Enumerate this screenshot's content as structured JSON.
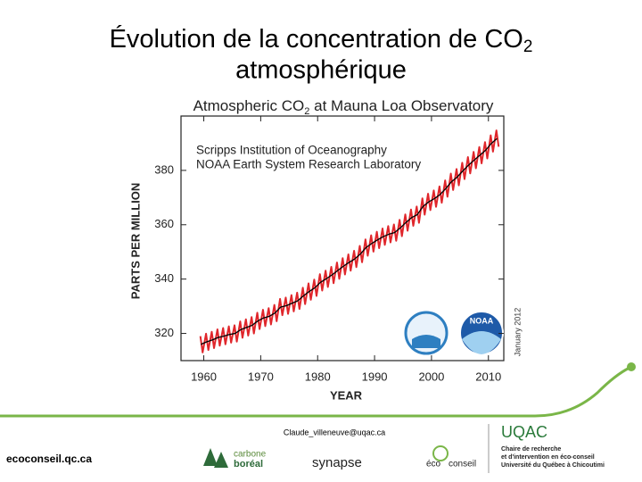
{
  "slide": {
    "title_main": "Évolution de la concentration de CO",
    "title_sub": "2",
    "title_line2": "atmosphérique"
  },
  "chart_data": {
    "type": "line",
    "title": "Atmospheric CO",
    "title_subscript": "2",
    "title_rest": "at Mauna Loa Observatory",
    "annotations": [
      "Scripps Institution of Oceanography",
      "NOAA Earth System Research Laboratory"
    ],
    "note": "January 2012",
    "logo_label": "NOAA",
    "xlabel": "YEAR",
    "ylabel": "PARTS PER MILLION",
    "xlim": [
      1956,
      2012.7
    ],
    "ylim": [
      310,
      400
    ],
    "xticks": [
      1960,
      1970,
      1980,
      1990,
      2000,
      2010
    ],
    "yticks": [
      320,
      340,
      360,
      380
    ],
    "series": [
      {
        "color": "#e0262b",
        "x": [
          1959.4,
          1959.8,
          1960.4,
          1960.8,
          1961.4,
          1961.8,
          1962.4,
          1962.8,
          1963.4,
          1963.8,
          1964.4,
          1964.8,
          1965.4,
          1965.8,
          1966.4,
          1966.8,
          1967.4,
          1967.8,
          1968.4,
          1968.8,
          1969.4,
          1969.8,
          1970.4,
          1970.8,
          1971.4,
          1971.8,
          1972.4,
          1972.8,
          1973.4,
          1973.8,
          1974.4,
          1974.8,
          1975.4,
          1975.8,
          1976.4,
          1976.8,
          1977.4,
          1977.8,
          1978.4,
          1978.8,
          1979.4,
          1979.8,
          1980.4,
          1980.8,
          1981.4,
          1981.8,
          1982.4,
          1982.8,
          1983.4,
          1983.8,
          1984.4,
          1984.8,
          1985.4,
          1985.8,
          1986.4,
          1986.8,
          1987.4,
          1987.8,
          1988.4,
          1988.8,
          1989.4,
          1989.8,
          1990.4,
          1990.8,
          1991.4,
          1991.8,
          1992.4,
          1992.8,
          1993.4,
          1993.8,
          1994.4,
          1994.8,
          1995.4,
          1995.8,
          1996.4,
          1996.8,
          1997.4,
          1997.8,
          1998.4,
          1998.8,
          1999.4,
          1999.8,
          2000.4,
          2000.8,
          2001.4,
          2001.8,
          2002.4,
          2002.8,
          2003.4,
          2003.8,
          2004.4,
          2004.8,
          2005.4,
          2005.8,
          2006.4,
          2006.8,
          2007.4,
          2007.8,
          2008.4,
          2008.8,
          2009.4,
          2009.8,
          2010.4,
          2010.8,
          2011.4,
          2011.8
        ],
        "values": [
          319.0,
          313.0,
          319.9,
          313.9,
          320.6,
          314.6,
          321.5,
          315.5,
          322.0,
          316.0,
          322.6,
          316.6,
          323.0,
          317.0,
          324.4,
          318.4,
          325.2,
          319.2,
          326.0,
          320.0,
          327.6,
          321.6,
          328.7,
          322.7,
          329.3,
          323.3,
          330.5,
          324.5,
          332.7,
          326.7,
          333.2,
          327.2,
          334.1,
          328.1,
          335.0,
          329.0,
          336.8,
          330.8,
          338.4,
          332.4,
          339.8,
          333.8,
          341.8,
          335.8,
          343.1,
          337.1,
          344.5,
          338.5,
          346.1,
          340.1,
          347.7,
          341.7,
          349.1,
          343.1,
          350.4,
          344.4,
          352.2,
          346.2,
          354.6,
          348.6,
          356.1,
          350.1,
          357.4,
          351.4,
          358.6,
          352.6,
          359.5,
          353.5,
          360.1,
          354.1,
          361.8,
          355.8,
          363.8,
          357.8,
          365.6,
          359.6,
          366.7,
          360.7,
          369.7,
          363.7,
          371.4,
          365.4,
          372.6,
          366.6,
          374.1,
          368.1,
          376.3,
          370.3,
          378.8,
          372.8,
          380.5,
          374.5,
          382.8,
          376.8,
          384.9,
          378.9,
          386.8,
          380.8,
          388.6,
          382.6,
          390.4,
          384.4,
          392.9,
          386.9,
          394.7,
          388.7
        ]
      },
      {
        "color": "#000000",
        "x": [
          1959.5,
          1960.5,
          1961.5,
          1962.5,
          1963.5,
          1964.5,
          1965.5,
          1966.5,
          1967.5,
          1968.5,
          1969.5,
          1970.5,
          1971.5,
          1972.5,
          1973.5,
          1974.5,
          1975.5,
          1976.5,
          1977.5,
          1978.5,
          1979.5,
          1980.5,
          1981.5,
          1982.5,
          1983.5,
          1984.5,
          1985.5,
          1986.5,
          1987.5,
          1988.5,
          1989.5,
          1990.5,
          1991.5,
          1992.5,
          1993.5,
          1994.5,
          1995.5,
          1996.5,
          1997.5,
          1998.5,
          1999.5,
          2000.5,
          2001.5,
          2002.5,
          2003.5,
          2004.5,
          2005.5,
          2006.5,
          2007.5,
          2008.5,
          2009.5,
          2010.5,
          2011.5
        ],
        "values": [
          316.0,
          316.9,
          317.6,
          318.5,
          319.0,
          319.6,
          320.0,
          321.4,
          322.2,
          323.0,
          324.6,
          325.7,
          326.3,
          327.5,
          329.7,
          330.2,
          331.1,
          332.0,
          333.8,
          335.4,
          336.8,
          338.8,
          340.1,
          341.5,
          343.1,
          344.7,
          346.1,
          347.4,
          349.2,
          351.6,
          353.1,
          354.4,
          355.6,
          356.5,
          357.1,
          358.8,
          360.8,
          362.6,
          363.7,
          366.7,
          368.4,
          369.6,
          371.1,
          373.3,
          375.8,
          377.5,
          379.8,
          381.9,
          383.8,
          385.6,
          387.4,
          389.9,
          391.7
        ]
      }
    ]
  },
  "footer": {
    "email": "Claude_villeneuve@uqac.ca",
    "site": "ecoconseil.qc.ca",
    "carbone": "carbone",
    "boreal": "boréal",
    "synapse": "synapse",
    "eco": "éco",
    "conseil": "conseil",
    "uqac": "UQAC",
    "chaire": [
      "Chaire de recherche",
      "et d'intervention en éco-conseil",
      "Université du Québec à Chicoutimi"
    ]
  }
}
